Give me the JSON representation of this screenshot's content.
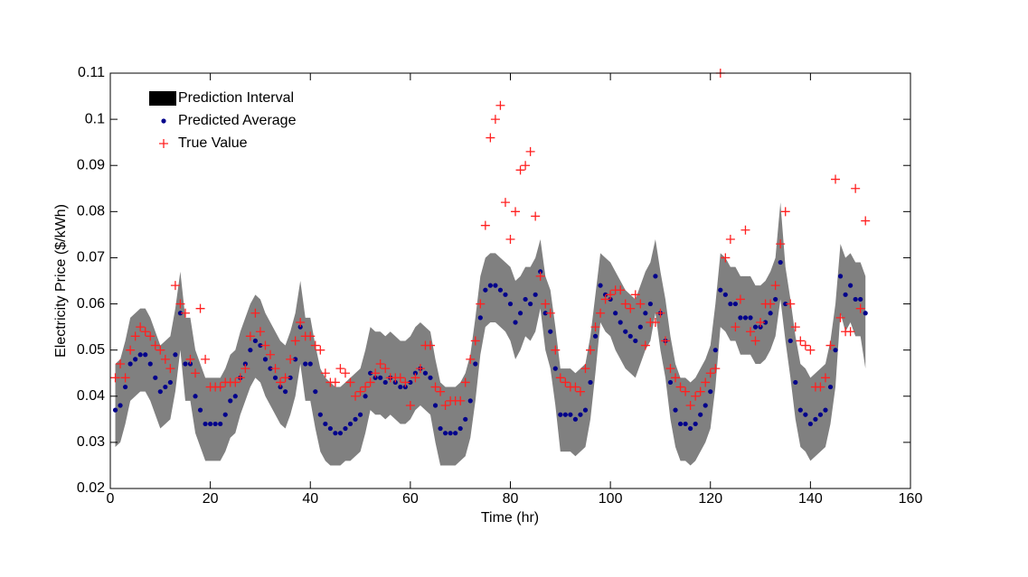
{
  "chart_data": {
    "type": "interval-scatter",
    "xlabel": "Time (hr)",
    "ylabel": "Electricity Price ($/kWh)",
    "xlim": [
      0,
      160
    ],
    "xticks": [
      0,
      20,
      40,
      60,
      80,
      100,
      120,
      140,
      160
    ],
    "ylim": [
      0.02,
      0.11
    ],
    "yticks": [
      0.02,
      0.03,
      0.04,
      0.05,
      0.06,
      0.07,
      0.08,
      0.09,
      0.1,
      0.11
    ],
    "legend": "upper left",
    "x": [
      1,
      2,
      3,
      4,
      5,
      6,
      7,
      8,
      9,
      10,
      11,
      12,
      13,
      14,
      15,
      16,
      17,
      18,
      19,
      20,
      21,
      22,
      23,
      24,
      25,
      26,
      27,
      28,
      29,
      30,
      31,
      32,
      33,
      34,
      35,
      36,
      37,
      38,
      39,
      40,
      41,
      42,
      43,
      44,
      45,
      46,
      47,
      48,
      49,
      50,
      51,
      52,
      53,
      54,
      55,
      56,
      57,
      58,
      59,
      60,
      61,
      62,
      63,
      64,
      65,
      66,
      67,
      68,
      69,
      70,
      71,
      72,
      73,
      74,
      75,
      76,
      77,
      78,
      79,
      80,
      81,
      82,
      83,
      84,
      85,
      86,
      87,
      88,
      89,
      90,
      91,
      92,
      93,
      94,
      95,
      96,
      97,
      98,
      99,
      100,
      101,
      102,
      103,
      104,
      105,
      106,
      107,
      108,
      109,
      110,
      111,
      112,
      113,
      114,
      115,
      116,
      117,
      118,
      119,
      120,
      121,
      122,
      123,
      124,
      125,
      126,
      127,
      128,
      129,
      130,
      131,
      132,
      133,
      134,
      135,
      136,
      137,
      138,
      139,
      140,
      141,
      142,
      143,
      144,
      145,
      146,
      147,
      148,
      149,
      150,
      151
    ],
    "series": [
      {
        "name": "Prediction Interval",
        "color": "#808080",
        "upper": [
          0.047,
          0.048,
          0.052,
          0.057,
          0.058,
          0.059,
          0.059,
          0.057,
          0.054,
          0.051,
          0.052,
          0.053,
          0.059,
          0.067,
          0.057,
          0.057,
          0.05,
          0.047,
          0.044,
          0.044,
          0.044,
          0.044,
          0.046,
          0.049,
          0.05,
          0.054,
          0.057,
          0.06,
          0.062,
          0.061,
          0.058,
          0.056,
          0.054,
          0.052,
          0.051,
          0.054,
          0.058,
          0.065,
          0.057,
          0.057,
          0.051,
          0.046,
          0.044,
          0.043,
          0.042,
          0.042,
          0.043,
          0.044,
          0.045,
          0.046,
          0.05,
          0.055,
          0.054,
          0.054,
          0.053,
          0.054,
          0.053,
          0.052,
          0.052,
          0.053,
          0.055,
          0.056,
          0.055,
          0.054,
          0.048,
          0.043,
          0.042,
          0.042,
          0.042,
          0.043,
          0.045,
          0.049,
          0.057,
          0.066,
          0.07,
          0.071,
          0.071,
          0.07,
          0.069,
          0.068,
          0.065,
          0.066,
          0.068,
          0.068,
          0.07,
          0.074,
          0.066,
          0.063,
          0.055,
          0.046,
          0.046,
          0.046,
          0.045,
          0.046,
          0.047,
          0.053,
          0.062,
          0.071,
          0.07,
          0.069,
          0.067,
          0.065,
          0.063,
          0.062,
          0.061,
          0.064,
          0.067,
          0.069,
          0.074,
          0.067,
          0.061,
          0.053,
          0.047,
          0.044,
          0.044,
          0.043,
          0.044,
          0.046,
          0.048,
          0.051,
          0.06,
          0.071,
          0.07,
          0.068,
          0.068,
          0.066,
          0.066,
          0.066,
          0.064,
          0.064,
          0.065,
          0.067,
          0.07,
          0.082,
          0.068,
          0.061,
          0.053,
          0.047,
          0.046,
          0.044,
          0.045,
          0.046,
          0.047,
          0.052,
          0.06,
          0.073,
          0.07,
          0.071,
          0.069,
          0.069,
          0.066
        ],
        "lower": [
          0.029,
          0.03,
          0.034,
          0.039,
          0.04,
          0.041,
          0.041,
          0.039,
          0.036,
          0.033,
          0.034,
          0.035,
          0.041,
          0.05,
          0.039,
          0.039,
          0.032,
          0.029,
          0.026,
          0.026,
          0.026,
          0.026,
          0.028,
          0.031,
          0.032,
          0.036,
          0.039,
          0.042,
          0.044,
          0.043,
          0.04,
          0.038,
          0.036,
          0.034,
          0.033,
          0.036,
          0.04,
          0.047,
          0.039,
          0.039,
          0.033,
          0.028,
          0.026,
          0.025,
          0.025,
          0.025,
          0.026,
          0.026,
          0.027,
          0.028,
          0.032,
          0.037,
          0.036,
          0.036,
          0.035,
          0.036,
          0.035,
          0.034,
          0.034,
          0.035,
          0.037,
          0.038,
          0.037,
          0.036,
          0.03,
          0.025,
          0.025,
          0.025,
          0.025,
          0.026,
          0.027,
          0.031,
          0.039,
          0.049,
          0.055,
          0.056,
          0.056,
          0.055,
          0.054,
          0.052,
          0.048,
          0.05,
          0.053,
          0.052,
          0.054,
          0.059,
          0.05,
          0.046,
          0.038,
          0.028,
          0.028,
          0.028,
          0.027,
          0.028,
          0.029,
          0.035,
          0.045,
          0.056,
          0.054,
          0.053,
          0.05,
          0.048,
          0.046,
          0.045,
          0.044,
          0.047,
          0.05,
          0.052,
          0.058,
          0.05,
          0.044,
          0.035,
          0.029,
          0.026,
          0.026,
          0.025,
          0.026,
          0.028,
          0.03,
          0.033,
          0.042,
          0.055,
          0.054,
          0.052,
          0.052,
          0.049,
          0.049,
          0.049,
          0.047,
          0.047,
          0.048,
          0.05,
          0.053,
          0.061,
          0.052,
          0.044,
          0.035,
          0.029,
          0.028,
          0.026,
          0.027,
          0.028,
          0.029,
          0.034,
          0.042,
          0.058,
          0.054,
          0.056,
          0.053,
          0.053,
          0.046
        ]
      },
      {
        "name": "Predicted Average",
        "color": "#00008b",
        "values": [
          0.037,
          0.038,
          0.042,
          0.047,
          0.048,
          0.049,
          0.049,
          0.047,
          0.044,
          0.041,
          0.042,
          0.043,
          0.049,
          0.058,
          0.047,
          0.047,
          0.04,
          0.037,
          0.034,
          0.034,
          0.034,
          0.034,
          0.036,
          0.039,
          0.04,
          0.044,
          0.047,
          0.05,
          0.052,
          0.051,
          0.048,
          0.046,
          0.044,
          0.042,
          0.041,
          0.044,
          0.048,
          0.055,
          0.047,
          0.047,
          0.041,
          0.036,
          0.034,
          0.033,
          0.032,
          0.032,
          0.033,
          0.034,
          0.035,
          0.036,
          0.04,
          0.045,
          0.044,
          0.044,
          0.043,
          0.044,
          0.043,
          0.042,
          0.042,
          0.043,
          0.045,
          0.046,
          0.045,
          0.044,
          0.038,
          0.033,
          0.032,
          0.032,
          0.032,
          0.033,
          0.035,
          0.039,
          0.047,
          0.057,
          0.063,
          0.064,
          0.064,
          0.063,
          0.062,
          0.06,
          0.056,
          0.058,
          0.061,
          0.06,
          0.062,
          0.067,
          0.058,
          0.054,
          0.046,
          0.036,
          0.036,
          0.036,
          0.035,
          0.036,
          0.037,
          0.043,
          0.053,
          0.064,
          0.062,
          0.061,
          0.058,
          0.056,
          0.054,
          0.053,
          0.052,
          0.055,
          0.058,
          0.06,
          0.066,
          0.058,
          0.052,
          0.043,
          0.037,
          0.034,
          0.034,
          0.033,
          0.034,
          0.036,
          0.038,
          0.041,
          0.05,
          0.063,
          0.062,
          0.06,
          0.06,
          0.057,
          0.057,
          0.057,
          0.055,
          0.055,
          0.056,
          0.058,
          0.061,
          0.069,
          0.06,
          0.052,
          0.043,
          0.037,
          0.036,
          0.034,
          0.035,
          0.036,
          0.037,
          0.042,
          0.05,
          0.066,
          0.062,
          0.064,
          0.061,
          0.061,
          0.058
        ]
      },
      {
        "name": "True Value",
        "color": "#ff2020",
        "values": [
          0.044,
          0.047,
          0.044,
          0.05,
          0.053,
          0.055,
          0.054,
          0.053,
          0.051,
          0.05,
          0.048,
          0.046,
          0.064,
          0.06,
          0.058,
          0.048,
          0.045,
          0.059,
          0.048,
          0.042,
          0.042,
          0.042,
          0.043,
          0.043,
          0.043,
          0.044,
          0.046,
          0.053,
          0.058,
          0.054,
          0.051,
          0.049,
          0.046,
          0.043,
          0.044,
          0.048,
          0.052,
          0.056,
          0.053,
          0.053,
          0.051,
          0.05,
          0.045,
          0.043,
          0.043,
          0.046,
          0.045,
          0.043,
          0.04,
          0.041,
          0.042,
          0.043,
          0.045,
          0.047,
          0.046,
          0.044,
          0.044,
          0.044,
          0.043,
          0.038,
          0.044,
          0.046,
          0.051,
          0.051,
          0.042,
          0.041,
          0.038,
          0.039,
          0.039,
          0.039,
          0.043,
          0.048,
          0.052,
          0.06,
          0.077,
          0.096,
          0.1,
          0.103,
          0.082,
          0.074,
          0.08,
          0.089,
          0.09,
          0.093,
          0.079,
          0.066,
          0.06,
          0.058,
          0.05,
          0.044,
          0.043,
          0.042,
          0.042,
          0.041,
          0.046,
          0.05,
          0.055,
          0.058,
          0.061,
          0.062,
          0.063,
          0.063,
          0.06,
          0.059,
          0.062,
          0.06,
          0.051,
          0.056,
          0.056,
          0.058,
          0.052,
          0.046,
          0.044,
          0.042,
          0.041,
          0.038,
          0.04,
          0.041,
          0.043,
          0.045,
          0.046,
          0.11,
          0.07,
          0.074,
          0.055,
          0.061,
          0.076,
          0.054,
          0.052,
          0.056,
          0.06,
          0.06,
          0.064,
          0.073,
          0.08,
          0.06,
          0.055,
          0.052,
          0.051,
          0.05,
          0.042,
          0.042,
          0.044,
          0.051,
          0.087,
          0.057,
          0.054,
          0.054,
          0.085,
          0.059,
          0.078
        ]
      }
    ]
  }
}
